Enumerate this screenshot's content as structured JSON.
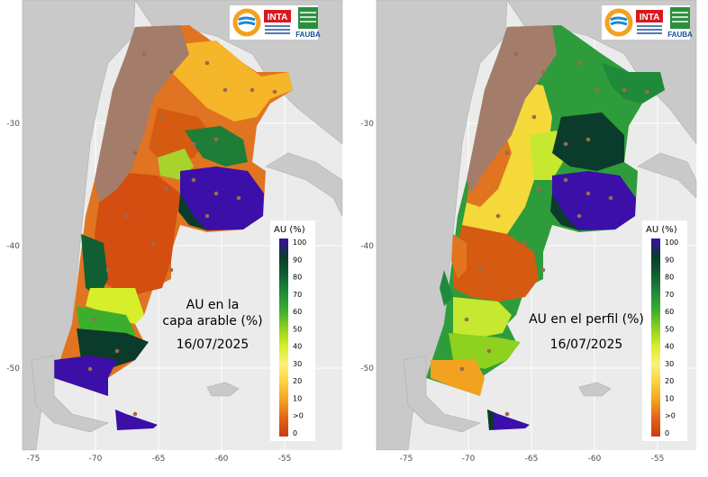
{
  "maps": [
    {
      "id": "left",
      "annotation_lines": [
        "AU en la",
        "capa arable (%)",
        "16/07/2025"
      ]
    },
    {
      "id": "right",
      "annotation_lines": [
        "AU en el perfil (%)",
        "16/07/2025"
      ]
    }
  ],
  "axes": {
    "x_ticks": [
      "-75",
      "-70",
      "-65",
      "-60",
      "-55"
    ],
    "y_ticks": [
      "-30",
      "-40",
      "-50"
    ]
  },
  "legend": {
    "title": "AU (%)",
    "labels": [
      "100",
      "90",
      "80",
      "70",
      "60",
      "50",
      "40",
      "30",
      "20",
      "10",
      ">0",
      "0"
    ],
    "colors": [
      "#3b0fa8",
      "#0b3b2a",
      "#0f5f33",
      "#1f8a3a",
      "#3cae2e",
      "#8fd11f",
      "#d7ef2a",
      "#fbf07a",
      "#fbd23a",
      "#f2a21f",
      "#e0621a",
      "#cc3b0c"
    ]
  },
  "logos": {
    "inta": "INTA",
    "fauba": "FAUBA"
  },
  "colors": {
    "background": "#ebebeb",
    "land_grey": "#c9c9c9",
    "dry_brown": "#a47d6a"
  }
}
